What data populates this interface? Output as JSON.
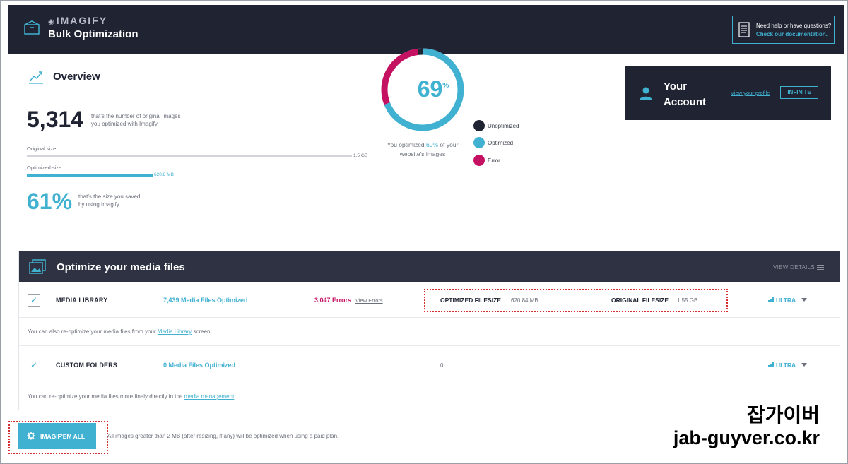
{
  "header": {
    "brand": "IMAGIFY",
    "title": "Bulk Optimization",
    "help_text": "Need help or have questions?",
    "help_link": "Check our documentation."
  },
  "overview": {
    "title": "Overview",
    "count": "5,314",
    "count_desc_1": "that's the number of original images",
    "count_desc_2": "you optimized with Imagify",
    "original_label": "Original size",
    "original_value": "1.5 GB",
    "optimized_label": "Optimized size",
    "optimized_value": "620.8 MB",
    "saved_pct": "61%",
    "saved_desc_1": "that's the size you saved",
    "saved_desc_2": "by using Imagify",
    "donut_value": "69",
    "donut_unit": "%",
    "caption_pre": "You optimized ",
    "caption_pct": "69%",
    "caption_post": " of your",
    "caption_line2": "website's images",
    "legend": [
      {
        "label": "Unoptimized",
        "color": "#1f2332"
      },
      {
        "label": "Optimized",
        "color": "#40b1d0"
      },
      {
        "label": "Error",
        "color": "#c51162"
      }
    ],
    "chart": {
      "optimized_fraction": 0.69,
      "error_fraction": 0.29,
      "unoptimized_fraction": 0.02,
      "original_bar_fraction": 1.0,
      "optimized_bar_fraction": 0.39
    }
  },
  "account": {
    "title_1": "Your",
    "title_2": "Account",
    "profile_link": "View your profile",
    "plan_button": "INFINITE"
  },
  "optimize": {
    "title": "Optimize your media files",
    "view_details": "VIEW DETAILS",
    "media_library": {
      "checkbox": "✓",
      "title": "MEDIA LIBRARY",
      "count": "7,439 Media Files Optimized",
      "errors": "3,047 Errors",
      "errors_link": "View Errors",
      "opt_label": "OPTIMIZED FILESIZE",
      "opt_value": "620.84 MB",
      "orig_label": "ORIGINAL FILESIZE",
      "orig_value": "1.55 GB",
      "level": "ULTRA",
      "note_pre": "You can also re-optimize your media files from your ",
      "note_link": "Media Library",
      "note_post": " screen."
    },
    "custom_folders": {
      "checkbox": "✓",
      "title": "CUSTOM FOLDERS",
      "count": "0 Media Files Optimized",
      "value": "0",
      "level": "ULTRA",
      "note_pre": "You can re-optimize your media files more finely directly in the ",
      "note_link": "media management",
      "note_post": "."
    }
  },
  "bottom": {
    "button": "IMAGIF'EM ALL",
    "note": "All images greater than 2 MB (after resizing, if any) will be optimized when using a paid plan."
  },
  "watermark": {
    "korean": "잡가이버",
    "url": "jab-guyver.co.kr"
  }
}
